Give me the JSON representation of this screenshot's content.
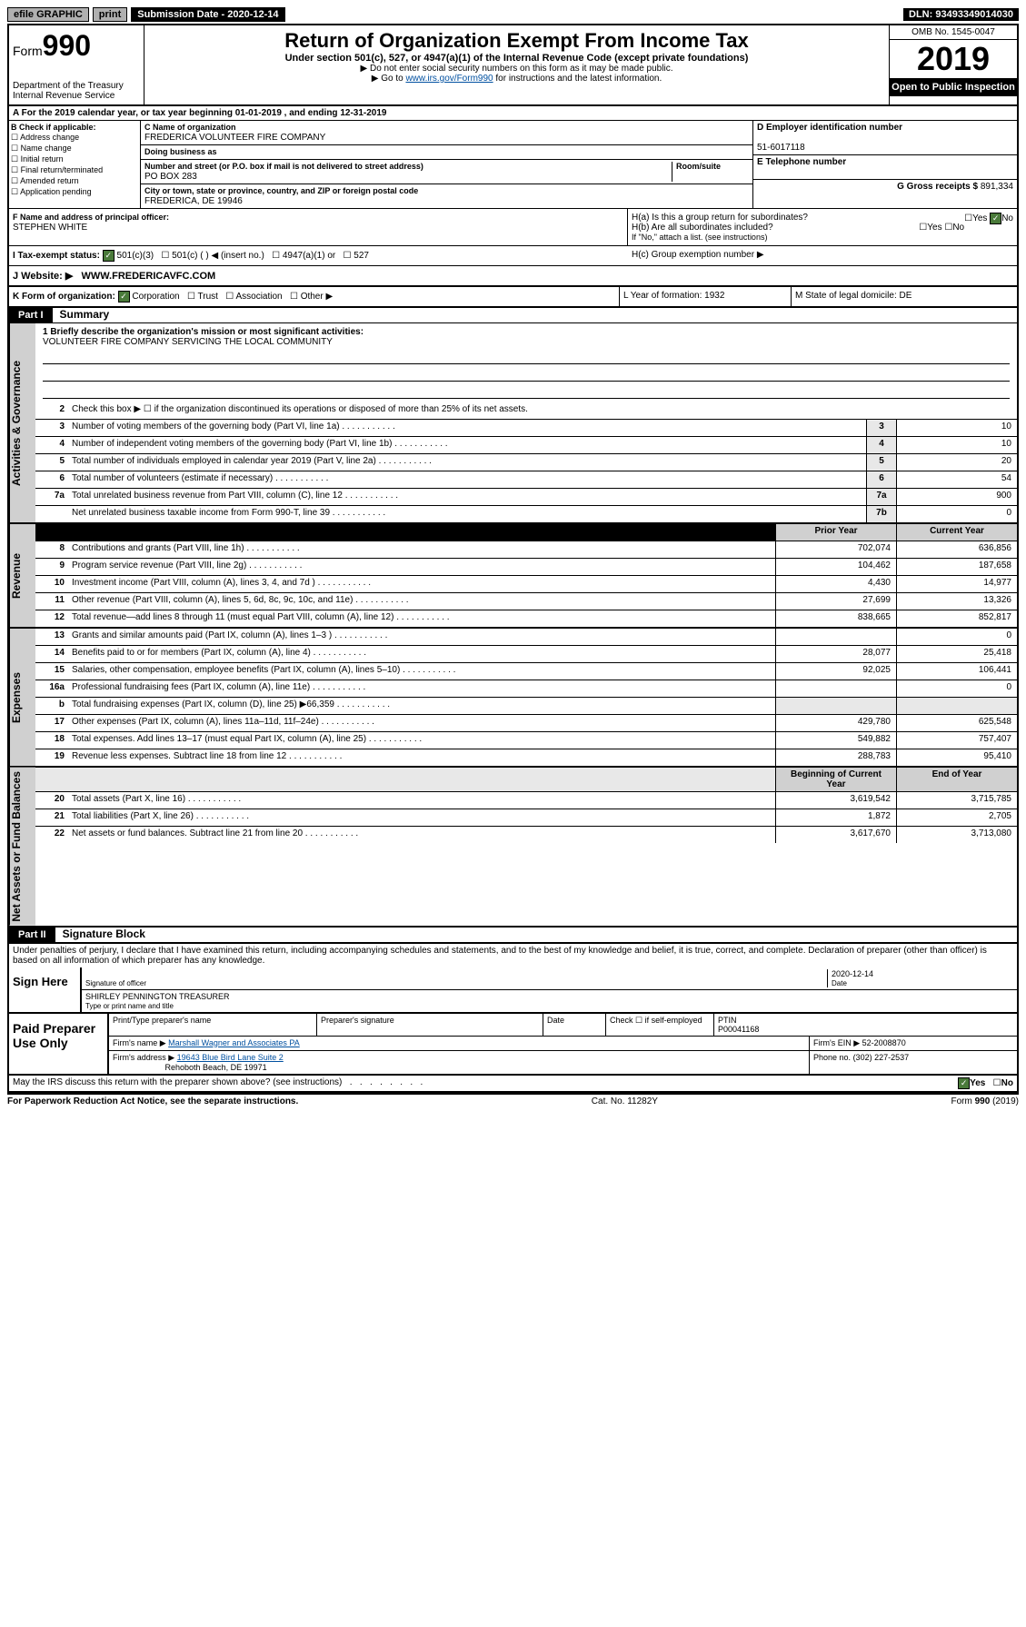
{
  "topbar": {
    "efile": "efile GRAPHIC",
    "print": "print",
    "subdate_label": "Submission Date - 2020-12-14",
    "dln": "DLN: 93493349014030"
  },
  "header": {
    "form_word": "Form",
    "form_num": "990",
    "title": "Return of Organization Exempt From Income Tax",
    "sub": "Under section 501(c), 527, or 4947(a)(1) of the Internal Revenue Code (except private foundations)",
    "note1": "▶ Do not enter social security numbers on this form as it may be made public.",
    "note2_pre": "▶ Go to ",
    "note2_link": "www.irs.gov/Form990",
    "note2_post": " for instructions and the latest information.",
    "dept": "Department of the Treasury\nInternal Revenue Service",
    "omb": "OMB No. 1545-0047",
    "year": "2019",
    "open": "Open to Public Inspection"
  },
  "rowA": "A For the 2019 calendar year, or tax year beginning 01-01-2019   , and ending 12-31-2019",
  "boxB": {
    "label": "B Check if applicable:",
    "items": [
      "Address change",
      "Name change",
      "Initial return",
      "Final return/terminated",
      "Amended return",
      "Application pending"
    ]
  },
  "boxC": {
    "name_label": "C Name of organization",
    "name": "FREDERICA VOLUNTEER FIRE COMPANY",
    "dba_label": "Doing business as",
    "addr_label": "Number and street (or P.O. box if mail is not delivered to street address)",
    "room_label": "Room/suite",
    "addr": "PO BOX 283",
    "city_label": "City or town, state or province, country, and ZIP or foreign postal code",
    "city": "FREDERICA, DE  19946"
  },
  "boxD": {
    "label": "D Employer identification number",
    "val": "51-6017118"
  },
  "boxE": {
    "label": "E Telephone number",
    "val": ""
  },
  "boxG": {
    "label": "G Gross receipts $",
    "val": "891,334"
  },
  "boxF": {
    "label": "F  Name and address of principal officer:",
    "name": "STEPHEN WHITE"
  },
  "boxH": {
    "ha": "H(a)  Is this a group return for subordinates?",
    "hb": "H(b)  Are all subordinates included?",
    "hb_note": "If \"No,\" attach a list. (see instructions)",
    "hc": "H(c)  Group exemption number ▶",
    "yes": "Yes",
    "no": "No"
  },
  "boxI": {
    "label": "I   Tax-exempt status:",
    "opts": [
      "501(c)(3)",
      "501(c) (  ) ◀ (insert no.)",
      "4947(a)(1) or",
      "527"
    ]
  },
  "boxJ": {
    "label": "J   Website: ▶",
    "val": "WWW.FREDERICAVFC.COM"
  },
  "boxK": {
    "label": "K Form of organization:",
    "opts": [
      "Corporation",
      "Trust",
      "Association",
      "Other ▶"
    ],
    "l": "L Year of formation: 1932",
    "m": "M State of legal domicile: DE"
  },
  "part1": {
    "num": "Part I",
    "title": "Summary"
  },
  "gov": {
    "l1_label": "1  Briefly describe the organization's mission or most significant activities:",
    "l1_val": "VOLUNTEER FIRE COMPANY SERVICING THE LOCAL COMMUNITY",
    "l2": "Check this box ▶ ☐  if the organization discontinued its operations or disposed of more than 25% of its net assets.",
    "rows": [
      {
        "n": "3",
        "t": "Number of voting members of the governing body (Part VI, line 1a)",
        "k": "3",
        "v": "10"
      },
      {
        "n": "4",
        "t": "Number of independent voting members of the governing body (Part VI, line 1b)",
        "k": "4",
        "v": "10"
      },
      {
        "n": "5",
        "t": "Total number of individuals employed in calendar year 2019 (Part V, line 2a)",
        "k": "5",
        "v": "20"
      },
      {
        "n": "6",
        "t": "Total number of volunteers (estimate if necessary)",
        "k": "6",
        "v": "54"
      },
      {
        "n": "7a",
        "t": "Total unrelated business revenue from Part VIII, column (C), line 12",
        "k": "7a",
        "v": "900"
      },
      {
        "n": "",
        "t": "Net unrelated business taxable income from Form 990-T, line 39",
        "k": "7b",
        "v": "0"
      }
    ]
  },
  "colhdr": {
    "prior": "Prior Year",
    "current": "Current Year",
    "bocy": "Beginning of Current Year",
    "eoy": "End of Year"
  },
  "rev": [
    {
      "n": "8",
      "t": "Contributions and grants (Part VIII, line 1h)",
      "p": "702,074",
      "c": "636,856"
    },
    {
      "n": "9",
      "t": "Program service revenue (Part VIII, line 2g)",
      "p": "104,462",
      "c": "187,658"
    },
    {
      "n": "10",
      "t": "Investment income (Part VIII, column (A), lines 3, 4, and 7d )",
      "p": "4,430",
      "c": "14,977"
    },
    {
      "n": "11",
      "t": "Other revenue (Part VIII, column (A), lines 5, 6d, 8c, 9c, 10c, and 11e)",
      "p": "27,699",
      "c": "13,326"
    },
    {
      "n": "12",
      "t": "Total revenue—add lines 8 through 11 (must equal Part VIII, column (A), line 12)",
      "p": "838,665",
      "c": "852,817"
    }
  ],
  "exp": [
    {
      "n": "13",
      "t": "Grants and similar amounts paid (Part IX, column (A), lines 1–3 )",
      "p": "",
      "c": "0"
    },
    {
      "n": "14",
      "t": "Benefits paid to or for members (Part IX, column (A), line 4)",
      "p": "28,077",
      "c": "25,418"
    },
    {
      "n": "15",
      "t": "Salaries, other compensation, employee benefits (Part IX, column (A), lines 5–10)",
      "p": "92,025",
      "c": "106,441"
    },
    {
      "n": "16a",
      "t": "Professional fundraising fees (Part IX, column (A), line 11e)",
      "p": "",
      "c": "0"
    },
    {
      "n": "b",
      "t": "Total fundraising expenses (Part IX, column (D), line 25) ▶66,359",
      "p": "",
      "c": "",
      "shade": true
    },
    {
      "n": "17",
      "t": "Other expenses (Part IX, column (A), lines 11a–11d, 11f–24e)",
      "p": "429,780",
      "c": "625,548"
    },
    {
      "n": "18",
      "t": "Total expenses. Add lines 13–17 (must equal Part IX, column (A), line 25)",
      "p": "549,882",
      "c": "757,407"
    },
    {
      "n": "19",
      "t": "Revenue less expenses. Subtract line 18 from line 12",
      "p": "288,783",
      "c": "95,410"
    }
  ],
  "net": [
    {
      "n": "20",
      "t": "Total assets (Part X, line 16)",
      "p": "3,619,542",
      "c": "3,715,785"
    },
    {
      "n": "21",
      "t": "Total liabilities (Part X, line 26)",
      "p": "1,872",
      "c": "2,705"
    },
    {
      "n": "22",
      "t": "Net assets or fund balances. Subtract line 21 from line 20",
      "p": "3,617,670",
      "c": "3,713,080"
    }
  ],
  "part2": {
    "num": "Part II",
    "title": "Signature Block"
  },
  "sig": {
    "decl": "Under penalties of perjury, I declare that I have examined this return, including accompanying schedules and statements, and to the best of my knowledge and belief, it is true, correct, and complete. Declaration of preparer (other than officer) is based on all information of which preparer has any knowledge.",
    "sign": "Sign Here",
    "sig_label": "Signature of officer",
    "date_label": "Date",
    "date": "2020-12-14",
    "name": "SHIRLEY PENNINGTON  TREASURER",
    "name_label": "Type or print name and title"
  },
  "prep": {
    "title": "Paid Preparer Use Only",
    "p_label": "Print/Type preparer's name",
    "s_label": "Preparer's signature",
    "d_label": "Date",
    "check_label": "Check ☐ if self-employed",
    "ptin_label": "PTIN",
    "ptin": "P00041168",
    "firm_label": "Firm's name    ▶",
    "firm": "Marshall Wagner and Associates PA",
    "ein_label": "Firm's EIN ▶",
    "ein": "52-2008870",
    "addr_label": "Firm's address ▶",
    "addr1": "19643 Blue Bird Lane Suite 2",
    "addr2": "Rehoboth Beach, DE  19971",
    "phone_label": "Phone no.",
    "phone": "(302) 227-2537"
  },
  "discuss": {
    "q": "May the IRS discuss this return with the preparer shown above? (see instructions)",
    "yes": "Yes",
    "no": "No"
  },
  "footer": {
    "l": "For Paperwork Reduction Act Notice, see the separate instructions.",
    "m": "Cat. No. 11282Y",
    "r": "Form 990 (2019)"
  },
  "vtabs": {
    "gov": "Activities & Governance",
    "rev": "Revenue",
    "exp": "Expenses",
    "net": "Net Assets or Fund Balances"
  }
}
